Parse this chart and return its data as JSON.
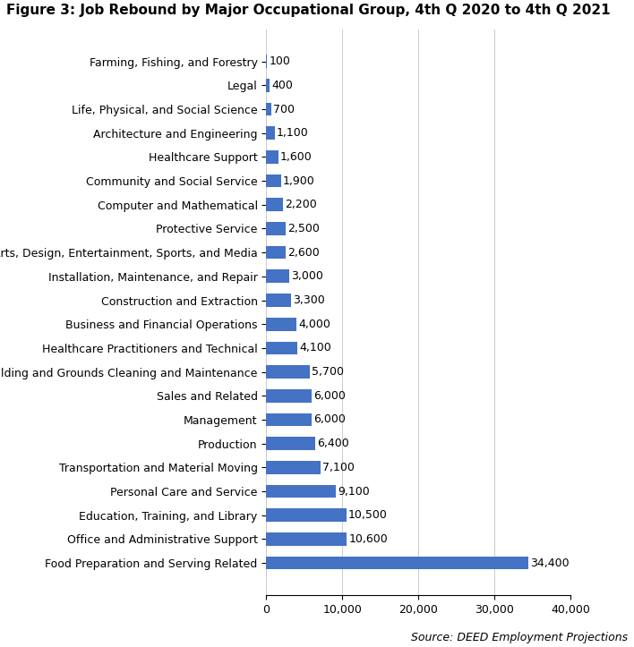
{
  "title": "Figure 3: Job Rebound by Major Occupational Group, 4th Q 2020 to 4th Q 2021",
  "source": "Source: DEED Employment Projections",
  "categories": [
    "Food Preparation and Serving Related",
    "Office and Administrative Support",
    "Education, Training, and Library",
    "Personal Care and Service",
    "Transportation and Material Moving",
    "Production",
    "Management",
    "Sales and Related",
    "Building and Grounds Cleaning and Maintenance",
    "Healthcare Practitioners and Technical",
    "Business and Financial Operations",
    "Construction and Extraction",
    "Installation, Maintenance, and Repair",
    "Arts, Design, Entertainment, Sports, and Media",
    "Protective Service",
    "Computer and Mathematical",
    "Community and Social Service",
    "Healthcare Support",
    "Architecture and Engineering",
    "Life, Physical, and Social Science",
    "Legal",
    "Farming, Fishing, and Forestry"
  ],
  "values": [
    34400,
    10600,
    10500,
    9100,
    7100,
    6400,
    6000,
    6000,
    5700,
    4100,
    4000,
    3300,
    3000,
    2600,
    2500,
    2200,
    1900,
    1600,
    1100,
    700,
    400,
    100
  ],
  "bar_color": "#4472C4",
  "xlim": [
    0,
    40000
  ],
  "xticks": [
    0,
    10000,
    20000,
    30000,
    40000
  ],
  "xtick_labels": [
    "0",
    "10,000",
    "20,000",
    "30,000",
    "40,000"
  ],
  "title_fontsize": 11,
  "label_fontsize": 9,
  "value_fontsize": 9,
  "source_fontsize": 9,
  "background_color": "#FFFFFF",
  "figsize": [
    7.08,
    7.23
  ],
  "dpi": 100
}
